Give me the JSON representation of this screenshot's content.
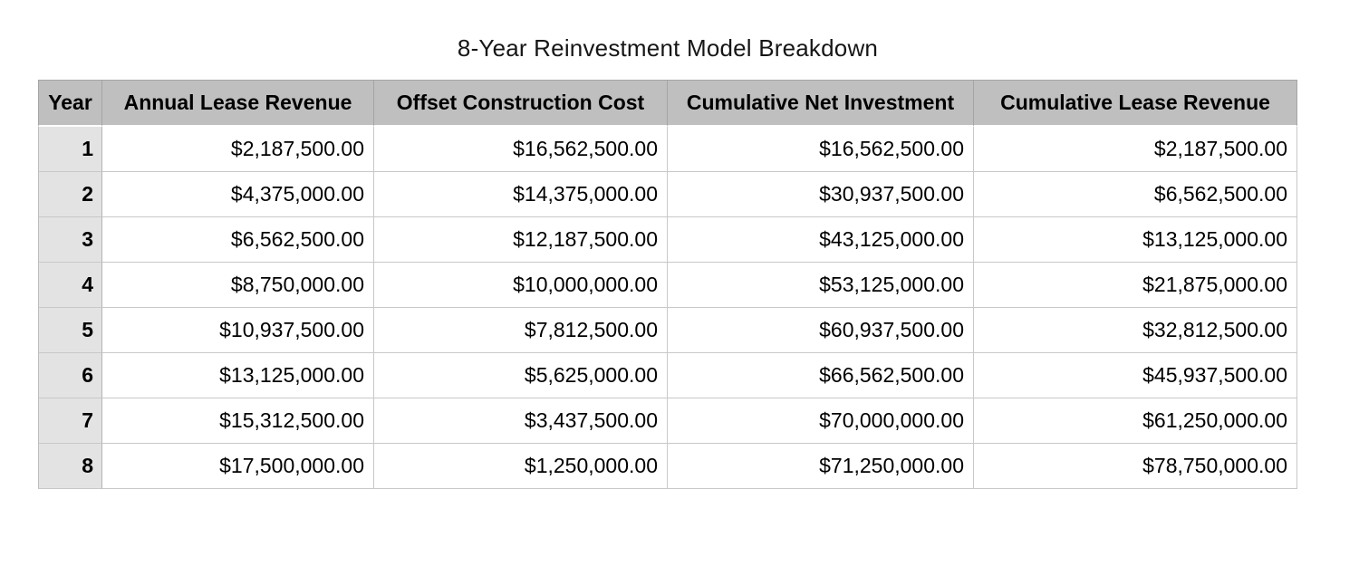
{
  "page": {
    "title": "8-Year Reinvestment Model Breakdown"
  },
  "table": {
    "columns": [
      "Year",
      "Annual Lease Revenue",
      "Offset Construction Cost",
      "Cumulative Net Investment",
      "Cumulative Lease Revenue"
    ],
    "rows": [
      [
        "1",
        "$2,187,500.00",
        "$16,562,500.00",
        "$16,562,500.00",
        "$2,187,500.00"
      ],
      [
        "2",
        "$4,375,000.00",
        "$14,375,000.00",
        "$30,937,500.00",
        "$6,562,500.00"
      ],
      [
        "3",
        "$6,562,500.00",
        "$12,187,500.00",
        "$43,125,000.00",
        "$13,125,000.00"
      ],
      [
        "4",
        "$8,750,000.00",
        "$10,000,000.00",
        "$53,125,000.00",
        "$21,875,000.00"
      ],
      [
        "5",
        "$10,937,500.00",
        "$7,812,500.00",
        "$60,937,500.00",
        "$32,812,500.00"
      ],
      [
        "6",
        "$13,125,000.00",
        "$5,625,000.00",
        "$66,562,500.00",
        "$45,937,500.00"
      ],
      [
        "7",
        "$15,312,500.00",
        "$3,437,500.00",
        "$70,000,000.00",
        "$61,250,000.00"
      ],
      [
        "8",
        "$17,500,000.00",
        "$1,250,000.00",
        "$71,250,000.00",
        "$78,750,000.00"
      ]
    ],
    "colors": {
      "header_bg": "#bfbfbf",
      "year_column_bg": "#e3e3e3",
      "row_bg": "#ffffff",
      "body_border": "#c8c8c8",
      "header_border": "#a5a5a5",
      "text": "#000000"
    }
  },
  "chart_data": {
    "type": "table",
    "title": "8-Year Reinvestment Model Breakdown",
    "categories": [
      1,
      2,
      3,
      4,
      5,
      6,
      7,
      8
    ],
    "series": [
      {
        "name": "Annual Lease Revenue",
        "values": [
          2187500,
          4375000,
          6562500,
          8750000,
          10937500,
          13125000,
          15312500,
          17500000
        ]
      },
      {
        "name": "Offset Construction Cost",
        "values": [
          16562500,
          14375000,
          12187500,
          10000000,
          7812500,
          5625000,
          3437500,
          1250000
        ]
      },
      {
        "name": "Cumulative Net Investment",
        "values": [
          16562500,
          30937500,
          43125000,
          53125000,
          60937500,
          66562500,
          70000000,
          71250000
        ]
      },
      {
        "name": "Cumulative Lease Revenue",
        "values": [
          2187500,
          6562500,
          13125000,
          21875000,
          32812500,
          45937500,
          61250000,
          78750000
        ]
      }
    ],
    "currency_format": "$#,##0.00",
    "layout": {
      "grid": true,
      "header_position": "top",
      "first_column": "Year"
    }
  }
}
